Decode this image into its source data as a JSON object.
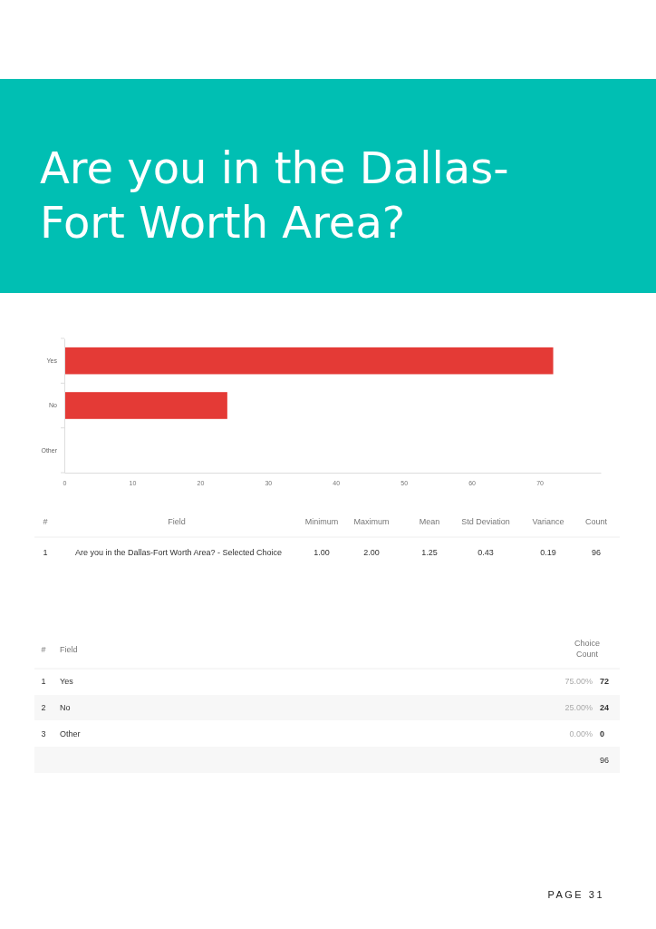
{
  "chart_data": {
    "type": "bar",
    "orientation": "horizontal",
    "title": "Are you in the Dallas-Fort Worth Area?",
    "categories": [
      "Yes",
      "No",
      "Other"
    ],
    "values": [
      72,
      24,
      0
    ],
    "color": "#e43a36",
    "xlim": [
      0,
      79
    ],
    "xticks": [
      0,
      10,
      20,
      30,
      40,
      50,
      60,
      70
    ],
    "grid": false,
    "annotations": [
      "#",
      "Field",
      "Minimum",
      "Maximum",
      "Mean",
      "Std Deviation",
      "Variance",
      "Count",
      "1",
      "Are you in the Dallas-Fort Worth Area? - Selected Choice",
      "1.00",
      "2.00",
      "1.25",
      "0.43",
      "0.19",
      "96",
      "#",
      "Field",
      "Choice Count",
      "1",
      "2",
      "3",
      "75.00%",
      "25.00%",
      "0.00%",
      "72",
      "24",
      "0",
      "96",
      "PAGE 31"
    ]
  }
}
